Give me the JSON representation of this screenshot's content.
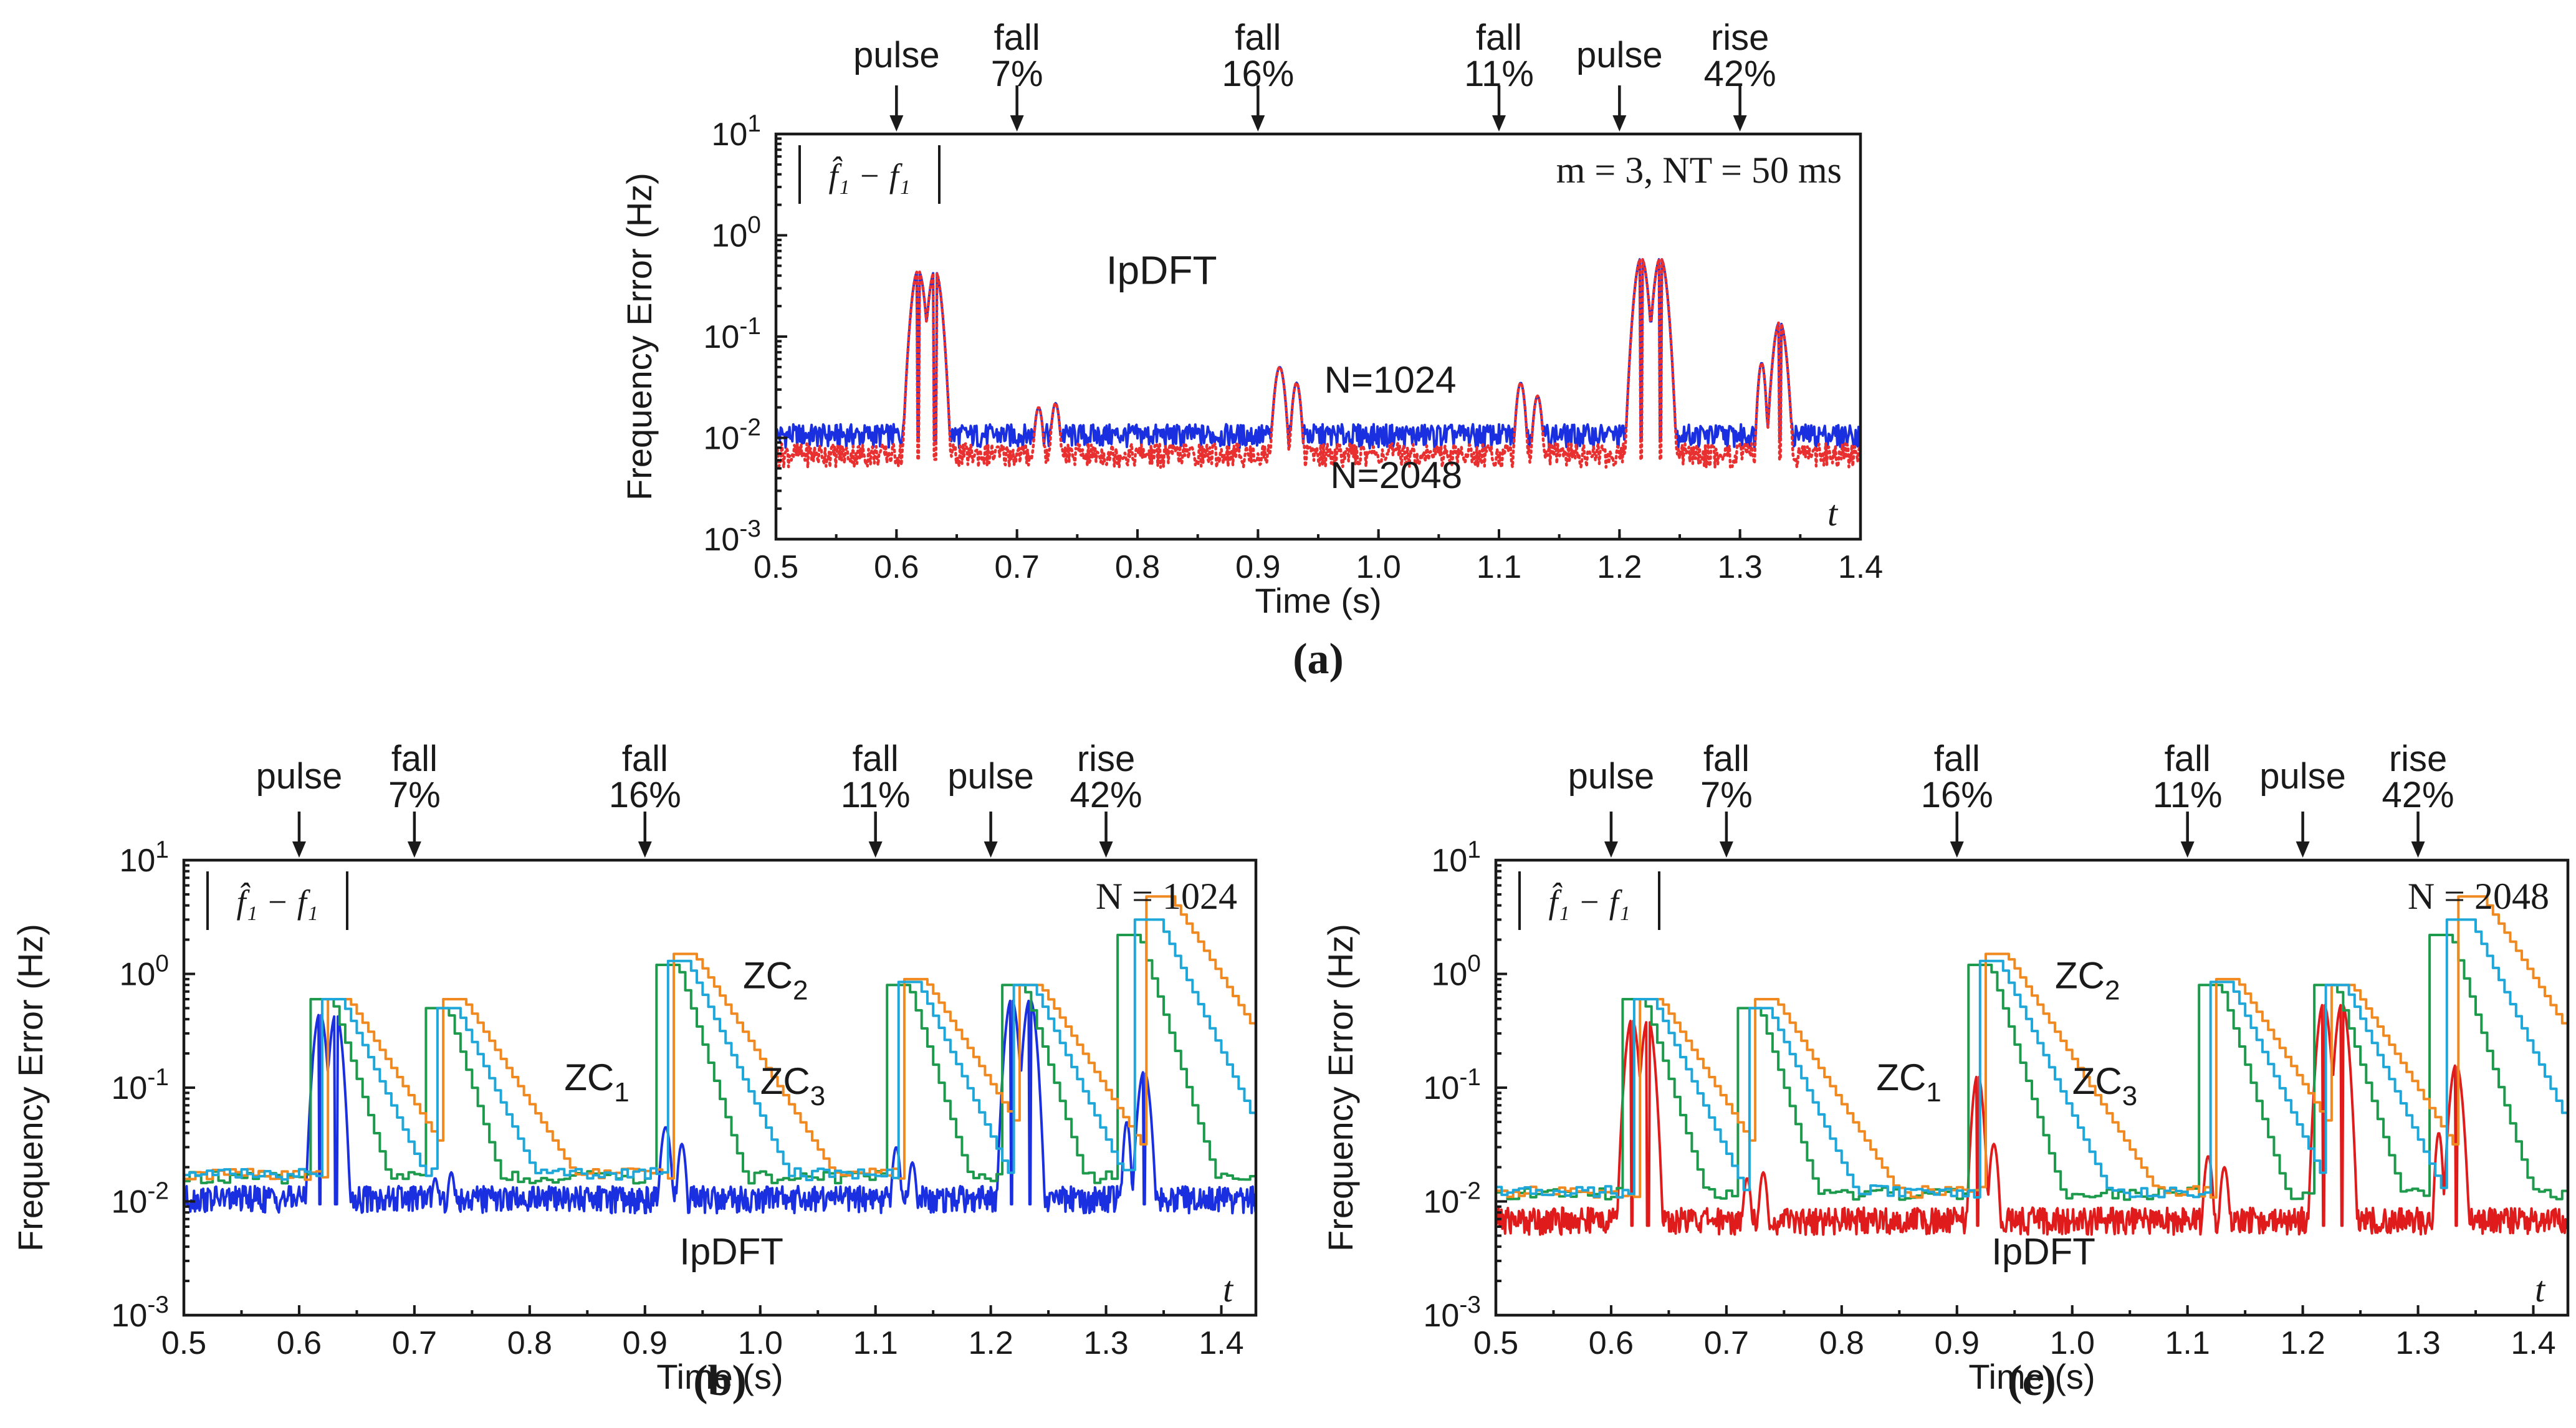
{
  "chart_data": [
    {
      "id": "a",
      "type": "line",
      "panel_label": "(a)",
      "method_label": "IpDFT",
      "ylabel": "Frequency Error (Hz)",
      "xlabel": "Time (s)",
      "t_label": "t",
      "yscale": "log",
      "xlim": [
        0.5,
        1.4
      ],
      "ylim": [
        0.001,
        10
      ],
      "x_ticks": [
        "0.5",
        "0.6",
        "0.7",
        "0.8",
        "0.9",
        "1.0",
        "1.1",
        "1.2",
        "1.3",
        "1.4"
      ],
      "y_ticks": [
        {
          "base": "10",
          "exp": "-3"
        },
        {
          "base": "10",
          "exp": "-2"
        },
        {
          "base": "10",
          "exp": "-1"
        },
        {
          "base": "10",
          "exp": "0"
        },
        {
          "base": "10",
          "exp": "1"
        }
      ],
      "inset_formula": "|f̂₁ − f₁|",
      "parameter_text": "m = 3, NT = 50 ms",
      "events": [
        {
          "t": 0.6,
          "line1": "",
          "line2": "pulse"
        },
        {
          "t": 0.7,
          "line1": "fall",
          "line2": "7%"
        },
        {
          "t": 0.9,
          "line1": "fall",
          "line2": "16%"
        },
        {
          "t": 1.1,
          "line1": "fall",
          "line2": "11%"
        },
        {
          "t": 1.2,
          "line1": "",
          "line2": "pulse"
        },
        {
          "t": 1.3,
          "line1": "rise",
          "line2": "42%"
        }
      ],
      "series": [
        {
          "name": "N=1024",
          "color": "#1a2fe0",
          "style": "solid",
          "baseline": 0.0105,
          "bumps": [
            {
              "t": 0.618,
              "peak": 0.45,
              "w": 0.008
            },
            {
              "t": 0.632,
              "peak": 0.45,
              "w": 0.008
            },
            {
              "t": 0.718,
              "peak": 0.02,
              "w": 0.006
            },
            {
              "t": 0.732,
              "peak": 0.022,
              "w": 0.006
            },
            {
              "t": 0.918,
              "peak": 0.05,
              "w": 0.007
            },
            {
              "t": 0.932,
              "peak": 0.035,
              "w": 0.006
            },
            {
              "t": 1.118,
              "peak": 0.035,
              "w": 0.006
            },
            {
              "t": 1.132,
              "peak": 0.026,
              "w": 0.006
            },
            {
              "t": 1.218,
              "peak": 0.6,
              "w": 0.008
            },
            {
              "t": 1.234,
              "peak": 0.6,
              "w": 0.008
            },
            {
              "t": 1.318,
              "peak": 0.055,
              "w": 0.005
            },
            {
              "t": 1.333,
              "peak": 0.14,
              "w": 0.008
            }
          ]
        },
        {
          "name": "N=2048",
          "color": "#e83030",
          "style": "dotted",
          "baseline": 0.0068,
          "bumps": [
            {
              "t": 0.618,
              "peak": 0.45,
              "w": 0.008
            },
            {
              "t": 0.632,
              "peak": 0.45,
              "w": 0.008
            },
            {
              "t": 0.718,
              "peak": 0.02,
              "w": 0.006
            },
            {
              "t": 0.732,
              "peak": 0.022,
              "w": 0.006
            },
            {
              "t": 0.918,
              "peak": 0.05,
              "w": 0.007
            },
            {
              "t": 0.932,
              "peak": 0.035,
              "w": 0.006
            },
            {
              "t": 1.118,
              "peak": 0.035,
              "w": 0.006
            },
            {
              "t": 1.132,
              "peak": 0.026,
              "w": 0.006
            },
            {
              "t": 1.218,
              "peak": 0.6,
              "w": 0.008
            },
            {
              "t": 1.234,
              "peak": 0.6,
              "w": 0.008
            },
            {
              "t": 1.318,
              "peak": 0.055,
              "w": 0.005
            },
            {
              "t": 1.333,
              "peak": 0.14,
              "w": 0.008
            }
          ]
        }
      ],
      "annotations": [
        {
          "text": "N=1024",
          "at": [
            0.955,
            0.028
          ]
        },
        {
          "text": "N=2048",
          "at": [
            0.96,
            0.0032
          ]
        }
      ]
    },
    {
      "id": "b",
      "type": "line",
      "panel_label": "(b)",
      "ylabel": "Frequency Error (Hz)",
      "xlabel": "Time (s)",
      "t_label": "t",
      "yscale": "log",
      "xlim": [
        0.5,
        1.43
      ],
      "ylim": [
        0.001,
        10
      ],
      "x_ticks": [
        "0.5",
        "0.6",
        "0.7",
        "0.8",
        "0.9",
        "1.0",
        "1.1",
        "1.2",
        "1.3",
        "1.4"
      ],
      "y_ticks": [
        {
          "base": "10",
          "exp": "-3"
        },
        {
          "base": "10",
          "exp": "-2"
        },
        {
          "base": "10",
          "exp": "-1"
        },
        {
          "base": "10",
          "exp": "0"
        },
        {
          "base": "10",
          "exp": "1"
        }
      ],
      "inset_formula": "|f̂₁ − f₁|",
      "parameter_text": "N = 1024",
      "events": [
        {
          "t": 0.6,
          "line1": "",
          "line2": "pulse"
        },
        {
          "t": 0.7,
          "line1": "fall",
          "line2": "7%"
        },
        {
          "t": 0.9,
          "line1": "fall",
          "line2": "16%"
        },
        {
          "t": 1.1,
          "line1": "fall",
          "line2": "11%"
        },
        {
          "t": 1.2,
          "line1": "",
          "line2": "pulse"
        },
        {
          "t": 1.3,
          "line1": "rise",
          "line2": "42%"
        }
      ],
      "series": [
        {
          "name": "IpDFT",
          "color": "#1a2fe0",
          "style": "solid",
          "baseline": 0.0105,
          "bumps": [
            {
              "t": 0.618,
              "peak": 0.45,
              "w": 0.008
            },
            {
              "t": 0.632,
              "peak": 0.45,
              "w": 0.008
            },
            {
              "t": 0.718,
              "peak": 0.016,
              "w": 0.006
            },
            {
              "t": 0.732,
              "peak": 0.018,
              "w": 0.006
            },
            {
              "t": 0.918,
              "peak": 0.045,
              "w": 0.007
            },
            {
              "t": 0.932,
              "peak": 0.032,
              "w": 0.006
            },
            {
              "t": 1.118,
              "peak": 0.03,
              "w": 0.006
            },
            {
              "t": 1.132,
              "peak": 0.022,
              "w": 0.006
            },
            {
              "t": 1.218,
              "peak": 0.6,
              "w": 0.008
            },
            {
              "t": 1.234,
              "peak": 0.6,
              "w": 0.008
            },
            {
              "t": 1.318,
              "peak": 0.05,
              "w": 0.005
            },
            {
              "t": 1.333,
              "peak": 0.14,
              "w": 0.008
            }
          ]
        },
        {
          "name": "ZC1",
          "color": "#1d9a4c",
          "style": "step",
          "baseline": 0.016,
          "ramp": 0.03,
          "windows": [
            {
              "t0": 0.61,
              "t1": 0.628,
              "peak": 0.6
            },
            {
              "t0": 0.71,
              "t1": 0.728,
              "peak": 0.5
            },
            {
              "t0": 0.91,
              "t1": 0.928,
              "peak": 1.2
            },
            {
              "t0": 1.11,
              "t1": 1.128,
              "peak": 0.8
            },
            {
              "t0": 1.21,
              "t1": 1.228,
              "peak": 0.8
            },
            {
              "t0": 1.31,
              "t1": 1.328,
              "peak": 2.2
            }
          ]
        },
        {
          "name": "ZC2",
          "color": "#f08a20",
          "style": "step",
          "baseline": 0.017,
          "ramp": 0.06,
          "windows": [
            {
              "t0": 0.622,
              "t1": 0.642,
              "peak": 0.6
            },
            {
              "t0": 0.722,
              "t1": 0.742,
              "peak": 0.6
            },
            {
              "t0": 0.922,
              "t1": 0.942,
              "peak": 1.5
            },
            {
              "t0": 1.122,
              "t1": 1.142,
              "peak": 0.9
            },
            {
              "t0": 1.222,
              "t1": 1.242,
              "peak": 0.8
            },
            {
              "t0": 1.335,
              "t1": 1.355,
              "peak": 4.8
            }
          ]
        },
        {
          "name": "ZC3",
          "color": "#1ea7d8",
          "style": "step",
          "baseline": 0.017,
          "ramp": 0.045,
          "windows": [
            {
              "t0": 0.616,
              "t1": 0.636,
              "peak": 0.6
            },
            {
              "t0": 0.716,
              "t1": 0.736,
              "peak": 0.5
            },
            {
              "t0": 0.916,
              "t1": 0.936,
              "peak": 1.3
            },
            {
              "t0": 1.116,
              "t1": 1.136,
              "peak": 0.85
            },
            {
              "t0": 1.216,
              "t1": 1.236,
              "peak": 0.8
            },
            {
              "t0": 1.325,
              "t1": 1.345,
              "peak": 3.0
            }
          ]
        }
      ],
      "annotations": [
        {
          "text": "ZC",
          "sub": "1",
          "at": [
            0.83,
            0.095
          ]
        },
        {
          "text": "ZC",
          "sub": "2",
          "at": [
            0.985,
            0.75
          ]
        },
        {
          "text": "ZC",
          "sub": "3",
          "at": [
            1.0,
            0.088
          ]
        },
        {
          "text": "IpDFT",
          "at": [
            0.93,
            0.0028
          ]
        }
      ]
    },
    {
      "id": "c",
      "type": "line",
      "panel_label": "(c)",
      "ylabel": "Frequency Error (Hz)",
      "xlabel": "Time (s)",
      "t_label": "t",
      "yscale": "log",
      "xlim": [
        0.5,
        1.43
      ],
      "ylim": [
        0.001,
        10
      ],
      "x_ticks": [
        "0.5",
        "0.6",
        "0.7",
        "0.8",
        "0.9",
        "1.0",
        "1.1",
        "1.2",
        "1.3",
        "1.4"
      ],
      "y_ticks": [
        {
          "base": "10",
          "exp": "-3"
        },
        {
          "base": "10",
          "exp": "-2"
        },
        {
          "base": "10",
          "exp": "-1"
        },
        {
          "base": "10",
          "exp": "0"
        },
        {
          "base": "10",
          "exp": "1"
        }
      ],
      "inset_formula": "|f̂₁ − f₁|",
      "parameter_text": "N = 2048",
      "events": [
        {
          "t": 0.6,
          "line1": "",
          "line2": "pulse"
        },
        {
          "t": 0.7,
          "line1": "fall",
          "line2": "7%"
        },
        {
          "t": 0.9,
          "line1": "fall",
          "line2": "16%"
        },
        {
          "t": 1.1,
          "line1": "fall",
          "line2": "11%"
        },
        {
          "t": 1.2,
          "line1": "",
          "line2": "pulse"
        },
        {
          "t": 1.3,
          "line1": "rise",
          "line2": "42%"
        }
      ],
      "series": [
        {
          "name": "IpDFT",
          "color": "#e01b1b",
          "style": "solid",
          "baseline": 0.0068,
          "bumps": [
            {
              "t": 0.618,
              "peak": 0.4,
              "w": 0.008
            },
            {
              "t": 0.632,
              "peak": 0.4,
              "w": 0.008
            },
            {
              "t": 0.718,
              "peak": 0.016,
              "w": 0.006
            },
            {
              "t": 0.732,
              "peak": 0.018,
              "w": 0.006
            },
            {
              "t": 0.918,
              "peak": 0.13,
              "w": 0.007
            },
            {
              "t": 0.932,
              "peak": 0.032,
              "w": 0.006
            },
            {
              "t": 1.118,
              "peak": 0.025,
              "w": 0.006
            },
            {
              "t": 1.132,
              "peak": 0.02,
              "w": 0.006
            },
            {
              "t": 1.218,
              "peak": 0.55,
              "w": 0.008
            },
            {
              "t": 1.234,
              "peak": 0.55,
              "w": 0.008
            },
            {
              "t": 1.318,
              "peak": 0.04,
              "w": 0.005
            },
            {
              "t": 1.333,
              "peak": 0.16,
              "w": 0.008
            }
          ]
        },
        {
          "name": "ZC1",
          "color": "#1d9a4c",
          "style": "step",
          "baseline": 0.0115,
          "ramp": 0.03,
          "windows": [
            {
              "t0": 0.61,
              "t1": 0.628,
              "peak": 0.6
            },
            {
              "t0": 0.71,
              "t1": 0.728,
              "peak": 0.5
            },
            {
              "t0": 0.91,
              "t1": 0.928,
              "peak": 1.2
            },
            {
              "t0": 1.11,
              "t1": 1.128,
              "peak": 0.8
            },
            {
              "t0": 1.21,
              "t1": 1.228,
              "peak": 0.8
            },
            {
              "t0": 1.31,
              "t1": 1.328,
              "peak": 2.2
            }
          ]
        },
        {
          "name": "ZC2",
          "color": "#f08a20",
          "style": "step",
          "baseline": 0.012,
          "ramp": 0.06,
          "windows": [
            {
              "t0": 0.622,
              "t1": 0.642,
              "peak": 0.6
            },
            {
              "t0": 0.722,
              "t1": 0.742,
              "peak": 0.6
            },
            {
              "t0": 0.922,
              "t1": 0.942,
              "peak": 1.5
            },
            {
              "t0": 1.122,
              "t1": 1.142,
              "peak": 0.9
            },
            {
              "t0": 1.222,
              "t1": 1.242,
              "peak": 0.8
            },
            {
              "t0": 1.335,
              "t1": 1.355,
              "peak": 4.8
            }
          ]
        },
        {
          "name": "ZC3",
          "color": "#1ea7d8",
          "style": "step",
          "baseline": 0.012,
          "ramp": 0.045,
          "windows": [
            {
              "t0": 0.616,
              "t1": 0.636,
              "peak": 0.6
            },
            {
              "t0": 0.716,
              "t1": 0.736,
              "peak": 0.5
            },
            {
              "t0": 0.916,
              "t1": 0.936,
              "peak": 1.3
            },
            {
              "t0": 1.116,
              "t1": 1.136,
              "peak": 0.85
            },
            {
              "t0": 1.216,
              "t1": 1.236,
              "peak": 0.8
            },
            {
              "t0": 1.325,
              "t1": 1.345,
              "peak": 3.0
            }
          ]
        }
      ],
      "annotations": [
        {
          "text": "ZC",
          "sub": "1",
          "at": [
            0.83,
            0.095
          ]
        },
        {
          "text": "ZC",
          "sub": "2",
          "at": [
            0.985,
            0.75
          ]
        },
        {
          "text": "ZC",
          "sub": "3",
          "at": [
            1.0,
            0.088
          ]
        },
        {
          "text": "IpDFT",
          "at": [
            0.93,
            0.0028
          ]
        }
      ]
    }
  ]
}
